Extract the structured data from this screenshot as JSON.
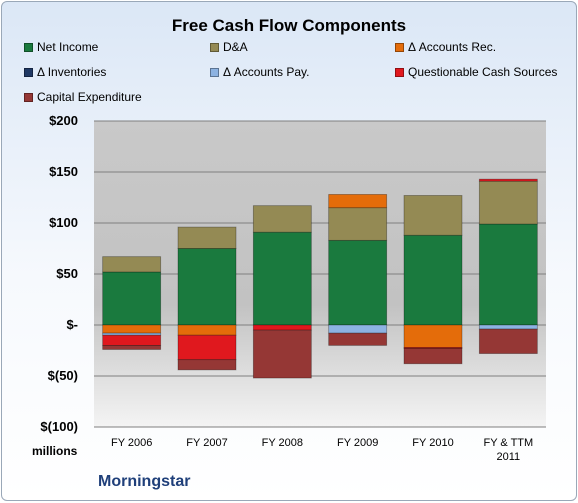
{
  "chart_data": {
    "type": "bar",
    "stacked": true,
    "title": "Free Cash Flow Components",
    "units_label": "millions",
    "brand": "Morningstar",
    "categories": [
      "FY 2006",
      "FY 2007",
      "FY 2008",
      "FY 2009",
      "FY 2010",
      "FY & TTM 2011"
    ],
    "category_lines": [
      [
        "FY 2006"
      ],
      [
        "FY 2007"
      ],
      [
        "FY 2008"
      ],
      [
        "FY 2009"
      ],
      [
        "FY 2010"
      ],
      [
        "FY & TTM",
        "2011"
      ]
    ],
    "y_ticks": [
      200,
      150,
      100,
      50,
      0,
      -50,
      -100
    ],
    "y_tick_labels": [
      "$200",
      "$150",
      "$100",
      "$50",
      "$-",
      "$(50)",
      "$(100)"
    ],
    "ylim": [
      -100,
      200
    ],
    "grid": true,
    "legend_position": "top",
    "series": [
      {
        "name": "Net Income",
        "color": "#1a7a3e",
        "values": [
          52,
          75,
          91,
          83,
          88,
          99
        ]
      },
      {
        "name": "D&A",
        "color": "#948a54",
        "values": [
          15,
          21,
          26,
          32,
          39,
          42
        ]
      },
      {
        "name": "Δ Accounts Rec.",
        "color": "#e46c0a",
        "values": [
          -8,
          -10,
          0,
          13,
          -22,
          0
        ]
      },
      {
        "name": "Δ Inventories",
        "color": "#1f3864",
        "values": [
          0,
          0,
          0,
          0,
          0,
          0
        ]
      },
      {
        "name": "Δ Accounts Pay.",
        "color": "#8db3e2",
        "values": [
          -2,
          0,
          0,
          -8,
          0,
          -4
        ]
      },
      {
        "name": "Questionable Cash Sources",
        "color": "#e0181e",
        "values": [
          -10,
          -24,
          -5,
          0,
          -1,
          2
        ]
      },
      {
        "name": "Capital Expenditure",
        "color": "#953735",
        "values": [
          -4,
          -10,
          -47,
          -12,
          -15,
          -24
        ]
      }
    ]
  }
}
